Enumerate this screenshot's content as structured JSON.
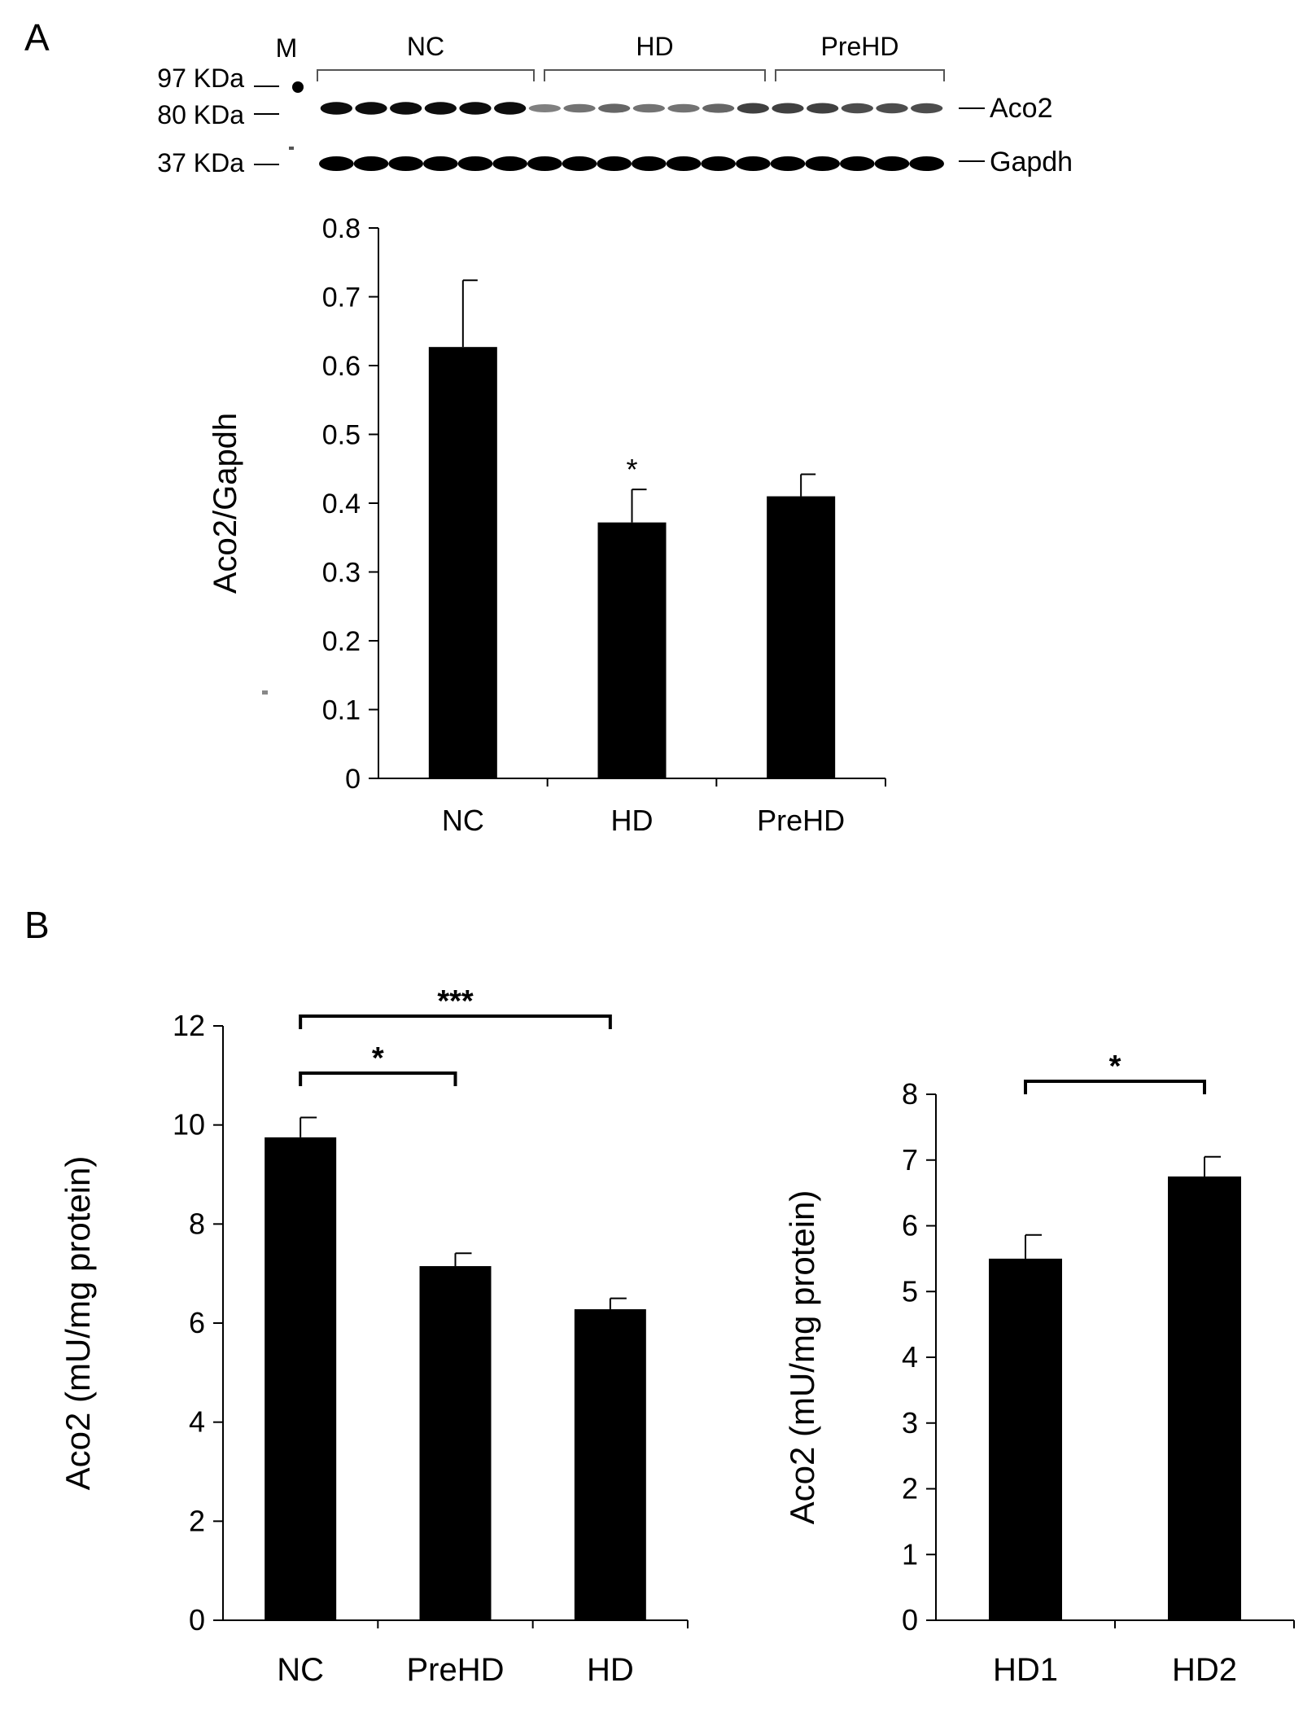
{
  "panels": {
    "a": {
      "letter": "A"
    },
    "b": {
      "letter": "B"
    }
  },
  "blot": {
    "marker_lane_label": "M",
    "groups": [
      "NC",
      "HD",
      "PreHD"
    ],
    "markers": [
      "97 KDa",
      "80 KDa",
      "37 KDa"
    ],
    "bands": [
      "Aco2",
      "Gapdh"
    ],
    "aco2_intensity": [
      0.95,
      0.95,
      0.95,
      0.95,
      0.95,
      0.95,
      0.5,
      0.55,
      0.6,
      0.55,
      0.55,
      0.6,
      0.75,
      0.75,
      0.75,
      0.7,
      0.7,
      0.7
    ],
    "gapdh_intensity": [
      1,
      1,
      1,
      1,
      1,
      1,
      1,
      1,
      1,
      1,
      1,
      1,
      1,
      1,
      1,
      1,
      1,
      1
    ]
  },
  "colors": {
    "bar": "#000000",
    "axis": "#000000",
    "background": "#ffffff"
  },
  "chart_data": [
    {
      "type": "bar",
      "panel": "A",
      "categories": [
        "NC",
        "HD",
        "PreHD"
      ],
      "values": [
        0.627,
        0.372,
        0.41
      ],
      "errors": [
        0.097,
        0.048,
        0.032
      ],
      "annotations": [
        "",
        "*",
        ""
      ],
      "ylabel": "Aco2/Gapdh",
      "ylim": [
        0,
        0.8
      ],
      "yticks": [
        "0",
        "0.1",
        "0.2",
        "0.3",
        "0.4",
        "0.5",
        "0.6",
        "0.7",
        "0.8"
      ],
      "grid": false
    },
    {
      "type": "bar",
      "panel": "B",
      "categories": [
        "NC",
        "PreHD",
        "HD"
      ],
      "values": [
        9.75,
        7.15,
        6.28
      ],
      "errors": [
        0.4,
        0.26,
        0.22
      ],
      "ylabel": "Aco2 (mU/mg protein)",
      "ylim": [
        0,
        12
      ],
      "yticks": [
        "0",
        "2",
        "4",
        "6",
        "8",
        "10",
        "12"
      ],
      "significance": [
        {
          "from": "NC",
          "to": "PreHD",
          "label": "*"
        },
        {
          "from": "NC",
          "to": "HD",
          "label": "***"
        }
      ],
      "grid": false
    },
    {
      "type": "bar",
      "panel": "B",
      "categories": [
        "HD1",
        "HD2"
      ],
      "values": [
        5.5,
        6.75
      ],
      "errors": [
        0.36,
        0.3
      ],
      "ylabel": "Aco2 (mU/mg protein)",
      "ylim": [
        0,
        8
      ],
      "yticks": [
        "0",
        "1",
        "2",
        "3",
        "4",
        "5",
        "6",
        "7",
        "8"
      ],
      "significance": [
        {
          "from": "HD1",
          "to": "HD2",
          "label": "*"
        }
      ],
      "grid": false
    }
  ]
}
